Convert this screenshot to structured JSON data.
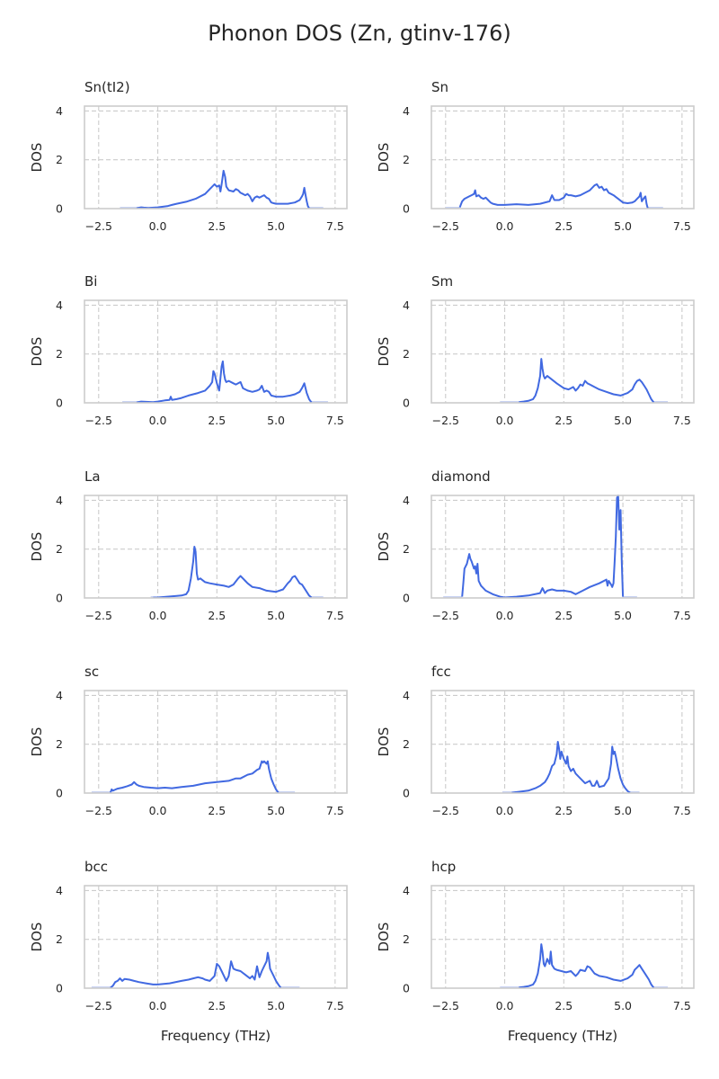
{
  "figure": {
    "title": "Phonon DOS (Zn, gtinv-176)"
  },
  "colors": {
    "line": "#4169e1",
    "tail": "#c9d3f2",
    "grid": "#cccccc",
    "frame": "#cccccc",
    "text": "#262626"
  },
  "chart_data": [
    {
      "type": "line",
      "title": "Sn(tI2)",
      "xlabel": "",
      "ylabel": "DOS",
      "xlim": [
        -3.1,
        8.0
      ],
      "ylim": [
        0,
        4.2
      ],
      "xticks": [
        -2.5,
        0.0,
        2.5,
        5.0,
        7.5
      ],
      "xtick_labels": [
        "−2.5",
        "0.0",
        "2.5",
        "5.0",
        "7.5"
      ],
      "yticks": [
        0,
        2,
        4
      ],
      "ytick_labels": [
        "0",
        "2",
        "4"
      ],
      "grid": true,
      "tail_x": [
        -1.6,
        -0.9,
        6.4,
        7.0
      ],
      "x": [
        -0.9,
        -0.7,
        -0.6,
        -0.4,
        0.0,
        0.4,
        0.6,
        0.8,
        1.2,
        1.6,
        2.0,
        2.2,
        2.3,
        2.4,
        2.5,
        2.6,
        2.65,
        2.7,
        2.78,
        2.85,
        2.9,
        3.0,
        3.2,
        3.3,
        3.4,
        3.5,
        3.6,
        3.7,
        3.8,
        3.9,
        4.0,
        4.1,
        4.2,
        4.3,
        4.4,
        4.5,
        4.6,
        4.7,
        4.8,
        4.9,
        5.0,
        5.5,
        5.8,
        6.0,
        6.1,
        6.15,
        6.2,
        6.25,
        6.3,
        6.35,
        6.4
      ],
      "y": [
        0.02,
        0.05,
        0.04,
        0.03,
        0.05,
        0.1,
        0.15,
        0.2,
        0.28,
        0.4,
        0.6,
        0.8,
        0.9,
        1.0,
        0.9,
        0.95,
        0.7,
        1.0,
        1.55,
        1.3,
        0.9,
        0.75,
        0.7,
        0.8,
        0.75,
        0.65,
        0.6,
        0.55,
        0.6,
        0.5,
        0.3,
        0.45,
        0.5,
        0.45,
        0.5,
        0.55,
        0.45,
        0.4,
        0.25,
        0.22,
        0.2,
        0.2,
        0.25,
        0.35,
        0.5,
        0.6,
        0.85,
        0.55,
        0.3,
        0.1,
        0.02
      ]
    },
    {
      "type": "line",
      "title": "Sn",
      "xlabel": "",
      "ylabel": "DOS",
      "xlim": [
        -3.1,
        8.0
      ],
      "ylim": [
        0,
        4.2
      ],
      "xticks": [
        -2.5,
        0.0,
        2.5,
        5.0,
        7.5
      ],
      "xtick_labels": [
        "−2.5",
        "0.0",
        "2.5",
        "5.0",
        "7.5"
      ],
      "yticks": [
        0,
        2,
        4
      ],
      "ytick_labels": [
        "0",
        "2",
        "4"
      ],
      "grid": true,
      "tail_x": [
        -2.5,
        -1.9,
        6.05,
        6.7
      ],
      "x": [
        -1.9,
        -1.8,
        -1.7,
        -1.5,
        -1.4,
        -1.3,
        -1.25,
        -1.2,
        -1.1,
        -1.0,
        -0.9,
        -0.8,
        -0.7,
        -0.6,
        -0.5,
        -0.3,
        0.0,
        0.5,
        1.0,
        1.5,
        1.9,
        2.0,
        2.1,
        2.2,
        2.3,
        2.5,
        2.6,
        2.7,
        2.8,
        3.0,
        3.2,
        3.4,
        3.6,
        3.8,
        3.9,
        4.0,
        4.1,
        4.2,
        4.3,
        4.4,
        4.5,
        4.6,
        4.8,
        5.0,
        5.2,
        5.4,
        5.5,
        5.6,
        5.7,
        5.75,
        5.8,
        5.9,
        5.95,
        6.0,
        6.05
      ],
      "y": [
        0.05,
        0.3,
        0.4,
        0.5,
        0.55,
        0.6,
        0.75,
        0.5,
        0.55,
        0.45,
        0.4,
        0.45,
        0.35,
        0.25,
        0.2,
        0.15,
        0.15,
        0.18,
        0.15,
        0.2,
        0.3,
        0.55,
        0.35,
        0.35,
        0.35,
        0.45,
        0.6,
        0.55,
        0.55,
        0.5,
        0.55,
        0.65,
        0.75,
        0.95,
        1.0,
        0.85,
        0.9,
        0.75,
        0.8,
        0.65,
        0.6,
        0.55,
        0.4,
        0.25,
        0.22,
        0.25,
        0.3,
        0.4,
        0.5,
        0.65,
        0.3,
        0.45,
        0.5,
        0.2,
        0.02
      ]
    },
    {
      "type": "line",
      "title": "Bi",
      "xlabel": "",
      "ylabel": "DOS",
      "xlim": [
        -3.1,
        8.0
      ],
      "ylim": [
        0,
        4.2
      ],
      "xticks": [
        -2.5,
        0.0,
        2.5,
        5.0,
        7.5
      ],
      "xtick_labels": [
        "−2.5",
        "0.0",
        "2.5",
        "5.0",
        "7.5"
      ],
      "yticks": [
        0,
        2,
        4
      ],
      "ytick_labels": [
        "0",
        "2",
        "4"
      ],
      "grid": true,
      "tail_x": [
        -1.5,
        -0.9,
        6.5,
        7.2
      ],
      "x": [
        -0.9,
        -0.7,
        -0.5,
        -0.2,
        0.0,
        0.3,
        0.5,
        0.55,
        0.6,
        0.8,
        1.0,
        1.3,
        1.5,
        1.7,
        2.0,
        2.2,
        2.3,
        2.35,
        2.4,
        2.5,
        2.6,
        2.7,
        2.75,
        2.8,
        2.85,
        2.9,
        3.0,
        3.2,
        3.3,
        3.5,
        3.6,
        3.8,
        4.0,
        4.2,
        4.3,
        4.4,
        4.5,
        4.6,
        4.7,
        4.8,
        5.0,
        5.3,
        5.6,
        5.8,
        6.0,
        6.1,
        6.2,
        6.3,
        6.4,
        6.5
      ],
      "y": [
        0.02,
        0.05,
        0.04,
        0.03,
        0.05,
        0.1,
        0.12,
        0.25,
        0.12,
        0.15,
        0.2,
        0.3,
        0.35,
        0.4,
        0.5,
        0.7,
        0.85,
        1.3,
        1.2,
        0.8,
        0.5,
        1.5,
        1.7,
        1.2,
        0.95,
        0.85,
        0.9,
        0.8,
        0.75,
        0.85,
        0.6,
        0.5,
        0.45,
        0.5,
        0.55,
        0.7,
        0.45,
        0.5,
        0.45,
        0.3,
        0.25,
        0.25,
        0.3,
        0.35,
        0.45,
        0.6,
        0.8,
        0.4,
        0.15,
        0.02
      ]
    },
    {
      "type": "line",
      "title": "Sm",
      "xlabel": "",
      "ylabel": "DOS",
      "xlim": [
        -3.1,
        8.0
      ],
      "ylim": [
        0,
        4.2
      ],
      "xticks": [
        -2.5,
        0.0,
        2.5,
        5.0,
        7.5
      ],
      "xtick_labels": [
        "−2.5",
        "0.0",
        "2.5",
        "5.0",
        "7.5"
      ],
      "yticks": [
        0,
        2,
        4
      ],
      "ytick_labels": [
        "0",
        "2",
        "4"
      ],
      "grid": true,
      "tail_x": [
        -0.2,
        0.6,
        6.3,
        6.9
      ],
      "x": [
        0.6,
        0.8,
        1.0,
        1.2,
        1.3,
        1.4,
        1.5,
        1.55,
        1.6,
        1.65,
        1.7,
        1.8,
        2.0,
        2.2,
        2.5,
        2.7,
        2.9,
        3.0,
        3.1,
        3.2,
        3.3,
        3.4,
        3.5,
        3.6,
        3.8,
        4.0,
        4.3,
        4.6,
        4.9,
        5.2,
        5.4,
        5.5,
        5.6,
        5.7,
        5.8,
        5.9,
        6.0,
        6.1,
        6.2,
        6.3
      ],
      "y": [
        0.03,
        0.05,
        0.08,
        0.15,
        0.3,
        0.6,
        1.1,
        1.8,
        1.4,
        1.1,
        1.0,
        1.1,
        0.95,
        0.8,
        0.6,
        0.55,
        0.65,
        0.5,
        0.6,
        0.75,
        0.7,
        0.9,
        0.8,
        0.75,
        0.65,
        0.55,
        0.45,
        0.35,
        0.3,
        0.4,
        0.55,
        0.75,
        0.9,
        0.95,
        0.85,
        0.7,
        0.55,
        0.35,
        0.15,
        0.02
      ]
    },
    {
      "type": "line",
      "title": "La",
      "xlabel": "",
      "ylabel": "DOS",
      "xlim": [
        -3.1,
        8.0
      ],
      "ylim": [
        0,
        4.2
      ],
      "xticks": [
        -2.5,
        0.0,
        2.5,
        5.0,
        7.5
      ],
      "xtick_labels": [
        "−2.5",
        "0.0",
        "2.5",
        "5.0",
        "7.5"
      ],
      "yticks": [
        0,
        2,
        4
      ],
      "ytick_labels": [
        "0",
        "2",
        "4"
      ],
      "grid": true,
      "tail_x": [
        -0.3,
        -0.2,
        6.5,
        7.0
      ],
      "x": [
        -0.2,
        0.0,
        0.4,
        0.8,
        1.0,
        1.2,
        1.3,
        1.4,
        1.5,
        1.55,
        1.6,
        1.65,
        1.7,
        1.8,
        2.0,
        2.2,
        2.5,
        2.8,
        3.0,
        3.2,
        3.4,
        3.5,
        3.6,
        3.7,
        3.8,
        4.0,
        4.3,
        4.6,
        5.0,
        5.3,
        5.5,
        5.6,
        5.7,
        5.8,
        5.9,
        6.0,
        6.1,
        6.2,
        6.4,
        6.5
      ],
      "y": [
        0.02,
        0.02,
        0.05,
        0.08,
        0.1,
        0.15,
        0.3,
        0.8,
        1.5,
        2.1,
        1.9,
        1.0,
        0.75,
        0.8,
        0.65,
        0.6,
        0.55,
        0.5,
        0.45,
        0.55,
        0.8,
        0.9,
        0.8,
        0.7,
        0.6,
        0.45,
        0.4,
        0.3,
        0.25,
        0.35,
        0.6,
        0.7,
        0.85,
        0.9,
        0.75,
        0.6,
        0.55,
        0.4,
        0.1,
        0.02
      ]
    },
    {
      "type": "line",
      "title": "diamond",
      "xlabel": "",
      "ylabel": "DOS",
      "xlim": [
        -3.1,
        8.0
      ],
      "ylim": [
        0,
        4.2
      ],
      "xticks": [
        -2.5,
        0.0,
        2.5,
        5.0,
        7.5
      ],
      "xtick_labels": [
        "−2.5",
        "0.0",
        "2.5",
        "5.0",
        "7.5"
      ],
      "yticks": [
        0,
        2,
        4
      ],
      "ytick_labels": [
        "0",
        "2",
        "4"
      ],
      "grid": true,
      "tail_x": [
        -2.6,
        -1.8,
        5.0,
        5.6
      ],
      "x": [
        -1.8,
        -1.75,
        -1.7,
        -1.6,
        -1.5,
        -1.45,
        -1.4,
        -1.3,
        -1.25,
        -1.2,
        -1.15,
        -1.1,
        -1.0,
        -0.8,
        -0.5,
        -0.2,
        0.0,
        0.5,
        1.0,
        1.5,
        1.6,
        1.7,
        1.8,
        2.0,
        2.2,
        2.5,
        2.8,
        3.0,
        3.3,
        3.6,
        4.0,
        4.3,
        4.35,
        4.4,
        4.5,
        4.55,
        4.6,
        4.65,
        4.7,
        4.75,
        4.8,
        4.85,
        4.9,
        4.95,
        5.0
      ],
      "y": [
        0.05,
        0.6,
        1.2,
        1.4,
        1.8,
        1.6,
        1.5,
        1.2,
        1.3,
        1.0,
        1.4,
        0.7,
        0.5,
        0.3,
        0.15,
        0.05,
        0.02,
        0.05,
        0.1,
        0.2,
        0.4,
        0.2,
        0.3,
        0.35,
        0.3,
        0.3,
        0.25,
        0.15,
        0.3,
        0.45,
        0.6,
        0.75,
        0.5,
        0.7,
        0.55,
        0.45,
        0.6,
        1.5,
        2.5,
        4.1,
        4.2,
        2.8,
        3.6,
        1.5,
        0.05
      ]
    },
    {
      "type": "line",
      "title": "sc",
      "xlabel": "",
      "ylabel": "DOS",
      "xlim": [
        -3.1,
        8.0
      ],
      "ylim": [
        0,
        4.2
      ],
      "xticks": [
        -2.5,
        0.0,
        2.5,
        5.0,
        7.5
      ],
      "xtick_labels": [
        "−2.5",
        "0.0",
        "2.5",
        "5.0",
        "7.5"
      ],
      "yticks": [
        0,
        2,
        4
      ],
      "ytick_labels": [
        "0",
        "2",
        "4"
      ],
      "grid": true,
      "tail_x": [
        -2.8,
        -2.0,
        5.1,
        5.8
      ],
      "x": [
        -2.0,
        -1.95,
        -1.9,
        -1.7,
        -1.5,
        -1.3,
        -1.1,
        -1.0,
        -0.9,
        -0.8,
        -0.6,
        -0.3,
        0.0,
        0.3,
        0.6,
        1.0,
        1.5,
        2.0,
        2.5,
        3.0,
        3.3,
        3.5,
        3.8,
        4.0,
        4.2,
        4.3,
        4.4,
        4.45,
        4.5,
        4.6,
        4.65,
        4.7,
        4.75,
        4.8,
        4.9,
        5.0,
        5.1
      ],
      "y": [
        0.02,
        0.15,
        0.1,
        0.18,
        0.22,
        0.28,
        0.35,
        0.45,
        0.35,
        0.3,
        0.25,
        0.22,
        0.2,
        0.22,
        0.2,
        0.25,
        0.3,
        0.4,
        0.45,
        0.5,
        0.6,
        0.6,
        0.75,
        0.8,
        0.95,
        1.0,
        1.3,
        1.25,
        1.3,
        1.2,
        1.3,
        1.0,
        0.8,
        0.6,
        0.35,
        0.15,
        0.02
      ]
    },
    {
      "type": "line",
      "title": "fcc",
      "xlabel": "",
      "ylabel": "DOS",
      "xlim": [
        -3.1,
        8.0
      ],
      "ylim": [
        0,
        4.2
      ],
      "xticks": [
        -2.5,
        0.0,
        2.5,
        5.0,
        7.5
      ],
      "xtick_labels": [
        "−2.5",
        "0.0",
        "2.5",
        "5.0",
        "7.5"
      ],
      "yticks": [
        0,
        2,
        4
      ],
      "ytick_labels": [
        "0",
        "2",
        "4"
      ],
      "grid": true,
      "tail_x": [
        -0.1,
        0.3,
        5.3,
        5.7
      ],
      "x": [
        0.3,
        0.6,
        1.0,
        1.3,
        1.5,
        1.7,
        1.8,
        1.9,
        2.0,
        2.1,
        2.2,
        2.25,
        2.3,
        2.35,
        2.4,
        2.5,
        2.6,
        2.65,
        2.7,
        2.8,
        2.9,
        3.0,
        3.2,
        3.4,
        3.6,
        3.7,
        3.8,
        3.9,
        4.0,
        4.2,
        4.4,
        4.5,
        4.55,
        4.6,
        4.65,
        4.7,
        4.8,
        4.9,
        5.0,
        5.1,
        5.2,
        5.3
      ],
      "y": [
        0.02,
        0.05,
        0.1,
        0.2,
        0.3,
        0.45,
        0.6,
        0.8,
        1.1,
        1.2,
        1.6,
        2.1,
        1.8,
        1.4,
        1.7,
        1.4,
        1.2,
        1.5,
        1.1,
        0.9,
        1.0,
        0.8,
        0.6,
        0.4,
        0.5,
        0.3,
        0.3,
        0.5,
        0.25,
        0.3,
        0.6,
        1.2,
        1.9,
        1.6,
        1.7,
        1.5,
        1.0,
        0.6,
        0.35,
        0.2,
        0.08,
        0.02
      ]
    },
    {
      "type": "line",
      "title": "bcc",
      "xlabel": "Frequency (THz)",
      "ylabel": "DOS",
      "xlim": [
        -3.1,
        8.0
      ],
      "ylim": [
        0,
        4.2
      ],
      "xticks": [
        -2.5,
        0.0,
        2.5,
        5.0,
        7.5
      ],
      "xtick_labels": [
        "−2.5",
        "0.0",
        "2.5",
        "5.0",
        "7.5"
      ],
      "yticks": [
        0,
        2,
        4
      ],
      "ytick_labels": [
        "0",
        "2",
        "4"
      ],
      "grid": true,
      "tail_x": [
        -2.8,
        -2.0,
        5.2,
        6.0
      ],
      "x": [
        -2.0,
        -1.9,
        -1.8,
        -1.7,
        -1.6,
        -1.5,
        -1.4,
        -1.2,
        -1.0,
        -0.8,
        -0.5,
        -0.2,
        0.0,
        0.5,
        1.0,
        1.3,
        1.5,
        1.7,
        1.9,
        2.0,
        2.2,
        2.4,
        2.5,
        2.6,
        2.7,
        2.8,
        2.9,
        3.0,
        3.1,
        3.2,
        3.3,
        3.5,
        3.7,
        3.9,
        4.0,
        4.1,
        4.2,
        4.3,
        4.4,
        4.5,
        4.6,
        4.65,
        4.7,
        4.75,
        4.8,
        4.9,
        5.0,
        5.1,
        5.2
      ],
      "y": [
        0.02,
        0.1,
        0.25,
        0.3,
        0.4,
        0.3,
        0.38,
        0.35,
        0.3,
        0.25,
        0.2,
        0.15,
        0.15,
        0.2,
        0.3,
        0.35,
        0.4,
        0.45,
        0.4,
        0.35,
        0.3,
        0.5,
        1.0,
        0.9,
        0.7,
        0.5,
        0.3,
        0.5,
        1.1,
        0.8,
        0.75,
        0.7,
        0.55,
        0.4,
        0.5,
        0.35,
        0.9,
        0.45,
        0.7,
        0.9,
        1.1,
        1.45,
        1.2,
        0.8,
        0.7,
        0.5,
        0.3,
        0.15,
        0.02
      ]
    },
    {
      "type": "line",
      "title": "hcp",
      "xlabel": "Frequency (THz)",
      "ylabel": "DOS",
      "xlim": [
        -3.1,
        8.0
      ],
      "ylim": [
        0,
        4.2
      ],
      "xticks": [
        -2.5,
        0.0,
        2.5,
        5.0,
        7.5
      ],
      "xtick_labels": [
        "−2.5",
        "0.0",
        "2.5",
        "5.0",
        "7.5"
      ],
      "yticks": [
        0,
        2,
        4
      ],
      "ytick_labels": [
        "0",
        "2",
        "4"
      ],
      "grid": true,
      "tail_x": [
        -0.2,
        0.6,
        6.3,
        6.9
      ],
      "x": [
        0.6,
        0.8,
        1.0,
        1.2,
        1.3,
        1.4,
        1.5,
        1.55,
        1.6,
        1.65,
        1.7,
        1.8,
        1.9,
        1.95,
        2.0,
        2.1,
        2.2,
        2.4,
        2.6,
        2.8,
        3.0,
        3.1,
        3.2,
        3.4,
        3.5,
        3.6,
        3.8,
        4.0,
        4.3,
        4.6,
        4.9,
        5.2,
        5.4,
        5.5,
        5.6,
        5.7,
        5.8,
        5.9,
        6.0,
        6.1,
        6.2,
        6.3
      ],
      "y": [
        0.03,
        0.05,
        0.08,
        0.15,
        0.3,
        0.6,
        1.2,
        1.8,
        1.5,
        1.0,
        0.9,
        1.2,
        1.0,
        1.5,
        0.95,
        0.8,
        0.75,
        0.7,
        0.65,
        0.7,
        0.5,
        0.6,
        0.75,
        0.7,
        0.9,
        0.85,
        0.6,
        0.5,
        0.45,
        0.35,
        0.3,
        0.4,
        0.55,
        0.75,
        0.85,
        0.95,
        0.8,
        0.65,
        0.5,
        0.35,
        0.15,
        0.02
      ]
    }
  ]
}
